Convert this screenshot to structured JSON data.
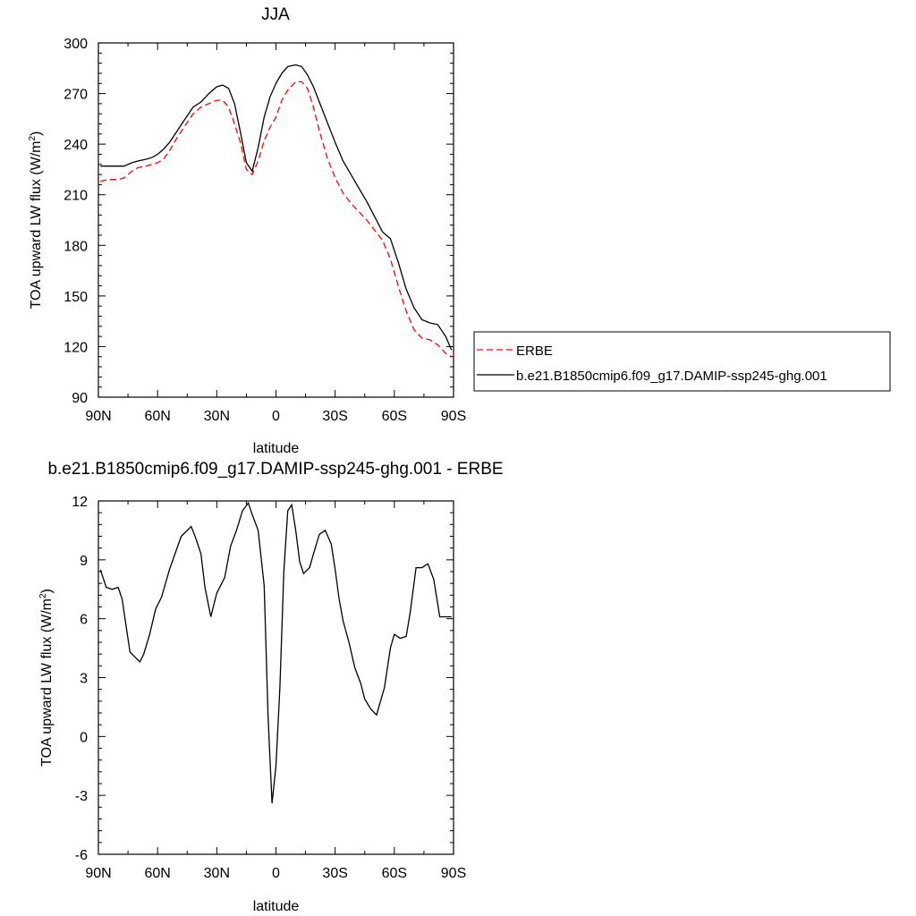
{
  "chart_data": [
    {
      "type": "line",
      "title": "JJA",
      "xlabel": "latitude",
      "ylabel_main": "TOA upward LW flux (W/m",
      "ylabel_sup": "2",
      "ylabel_close": ")",
      "xlim": [
        90,
        -90
      ],
      "ylim": [
        90,
        300
      ],
      "xticks": [
        90,
        60,
        30,
        0,
        -30,
        -60,
        -90
      ],
      "xtick_labels": [
        "90N",
        "60N",
        "30N",
        "0",
        "30S",
        "60S",
        "90S"
      ],
      "yticks": [
        90,
        120,
        150,
        180,
        210,
        240,
        270,
        300
      ],
      "ytick_labels": [
        "90",
        "120",
        "150",
        "180",
        "210",
        "240",
        "270",
        "300"
      ],
      "legend_position": "right",
      "series": [
        {
          "name": "ERBE",
          "color": "#ff0000",
          "dash": true,
          "x": [
            89,
            85,
            80,
            77,
            73,
            70,
            66,
            63,
            60,
            57,
            54,
            50,
            46,
            42,
            38,
            34,
            30,
            27,
            24,
            21,
            18,
            15,
            12,
            9,
            6,
            3,
            0,
            -3,
            -6,
            -10,
            -13,
            -16,
            -19,
            -22,
            -26,
            -30,
            -34,
            -38,
            -42,
            -46,
            -50,
            -54,
            -58,
            -62,
            -66,
            -70,
            -74,
            -78,
            -82,
            -86,
            -89
          ],
          "y": [
            218,
            219,
            219,
            220,
            224,
            226,
            227,
            228,
            229,
            231,
            236,
            244,
            251,
            258,
            262,
            264,
            266,
            266,
            262,
            252,
            241,
            225,
            222,
            230,
            242,
            250,
            256,
            266,
            272,
            277,
            277,
            273,
            262,
            248,
            232,
            220,
            211,
            205,
            200,
            195,
            189,
            183,
            172,
            156,
            141,
            130,
            125,
            124,
            121,
            116,
            114
          ]
        },
        {
          "name": "b.e21.B1850cmip6.f09_g17.DAMIP-ssp245-ghg.001",
          "color": "#000000",
          "dash": false,
          "x": [
            89,
            85,
            80,
            77,
            73,
            70,
            66,
            63,
            60,
            57,
            54,
            50,
            46,
            42,
            38,
            34,
            30,
            27,
            24,
            21,
            18,
            15,
            12,
            9,
            6,
            3,
            0,
            -3,
            -6,
            -10,
            -13,
            -16,
            -19,
            -22,
            -26,
            -30,
            -34,
            -38,
            -42,
            -46,
            -50,
            -54,
            -58,
            -62,
            -66,
            -70,
            -74,
            -78,
            -82,
            -86,
            -89
          ],
          "y": [
            227,
            227,
            227,
            227,
            229,
            230,
            231,
            232,
            234,
            237,
            241,
            248,
            255,
            262,
            265,
            270,
            274,
            275,
            273,
            264,
            247,
            229,
            224,
            238,
            256,
            268,
            276,
            282,
            286,
            287,
            286,
            281,
            274,
            265,
            253,
            241,
            230,
            222,
            214,
            206,
            197,
            188,
            184,
            170,
            154,
            143,
            136,
            134,
            133,
            126,
            118
          ]
        }
      ]
    },
    {
      "type": "line",
      "title": "b.e21.B1850cmip6.f09_g17.DAMIP-ssp245-ghg.001 - ERBE",
      "xlabel": "latitude",
      "ylabel_main": "TOA upward LW flux (W/m",
      "ylabel_sup": "2",
      "ylabel_close": ")",
      "xlim": [
        90,
        -90
      ],
      "ylim": [
        -6,
        12
      ],
      "xticks": [
        90,
        60,
        30,
        0,
        -30,
        -60,
        -90
      ],
      "xtick_labels": [
        "90N",
        "60N",
        "30N",
        "0",
        "30S",
        "60S",
        "90S"
      ],
      "yticks": [
        -6,
        -3,
        0,
        3,
        6,
        9,
        12
      ],
      "ytick_labels": [
        "-6",
        "-3",
        "0",
        "3",
        "6",
        "9",
        "12"
      ],
      "series": [
        {
          "color": "#000000",
          "x": [
            89,
            86,
            83,
            80,
            78,
            74,
            69,
            67,
            64,
            61,
            58,
            54,
            48,
            43,
            41,
            38,
            36,
            33,
            30,
            26,
            23,
            20,
            17,
            14,
            12,
            9,
            6,
            4,
            2,
            0,
            -2,
            -4,
            -6,
            -8,
            -10,
            -12,
            -14,
            -17,
            -19,
            -22,
            -25,
            -28,
            -30,
            -32,
            -34,
            -37,
            -40,
            -43,
            -45,
            -48,
            -51,
            -55,
            -58,
            -60,
            -63,
            -66,
            -68,
            -71,
            -74,
            -77,
            -80,
            -83,
            -86,
            -89
          ],
          "y": [
            8.5,
            7.6,
            7.5,
            7.6,
            7.0,
            4.3,
            3.8,
            4.2,
            5.2,
            6.5,
            7.1,
            8.5,
            10.2,
            10.7,
            10.2,
            9.3,
            7.6,
            6.1,
            7.3,
            8.1,
            9.7,
            10.5,
            11.5,
            11.9,
            11.3,
            10.5,
            7.7,
            1.0,
            -3.4,
            -1.5,
            2.5,
            8.4,
            11.5,
            11.8,
            10.5,
            8.9,
            8.3,
            8.6,
            9.3,
            10.3,
            10.5,
            9.8,
            8.5,
            7.0,
            5.9,
            4.8,
            3.5,
            2.7,
            1.9,
            1.4,
            1.1,
            2.5,
            4.5,
            5.2,
            5.0,
            5.1,
            6.3,
            8.6,
            8.6,
            8.8,
            8.0,
            6.1,
            6.1,
            6.1
          ]
        }
      ]
    }
  ]
}
